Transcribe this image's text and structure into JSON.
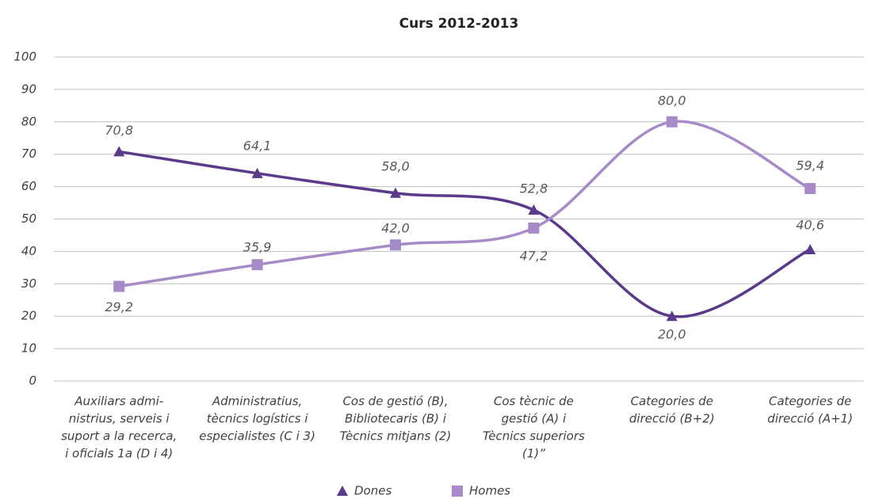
{
  "chart_data": {
    "type": "line",
    "title": "Curs 2012-2013",
    "categories": [
      [
        "Auxiliars admi-",
        "nistrius, serveis i",
        "suport a la recerca,",
        "i oficials 1a (D i 4)"
      ],
      [
        "Administratius,",
        "tècnics logístics i",
        "especialistes (C i 3)"
      ],
      [
        "Cos de gestió (B),",
        "Bibliotecaris (B) i",
        "Tècnics mitjans (2)"
      ],
      [
        "Cos tècnic de",
        "gestió (A) i",
        "Tècnics superiors",
        "(1)”"
      ],
      [
        "Categories de",
        "direcció (B+2)"
      ],
      [
        "Categories de",
        "direcció (A+1)"
      ]
    ],
    "series": [
      {
        "name": "Dones",
        "color": "#5b3a8c",
        "marker": "triangle",
        "values": [
          70.8,
          64.1,
          58.0,
          52.8,
          20.0,
          40.6
        ],
        "value_labels": [
          "70,8",
          "64,1",
          "58,0",
          "52,8",
          "20,0",
          "40,6"
        ]
      },
      {
        "name": "Homes",
        "color": "#a68bc8",
        "marker": "square",
        "values": [
          29.2,
          35.9,
          42.0,
          47.2,
          80.0,
          59.4
        ],
        "value_labels": [
          "29,2",
          "35,9",
          "42,0",
          "47,2",
          "80,0",
          "59,4"
        ]
      }
    ],
    "ylim": [
      0,
      100
    ],
    "yticks": [
      0,
      10,
      20,
      30,
      40,
      50,
      60,
      70,
      80,
      90,
      100
    ],
    "grid": true,
    "legend": "bottom",
    "smooth": true
  }
}
